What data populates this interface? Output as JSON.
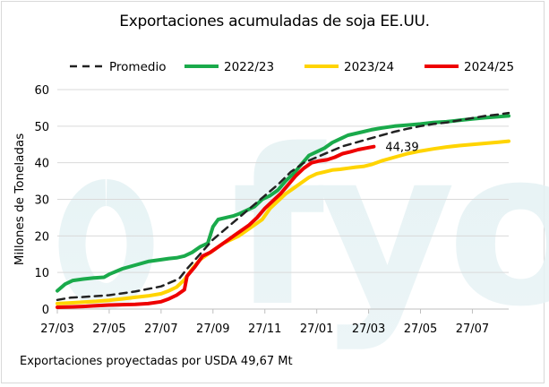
{
  "title": "Exportaciones acumuladas de soja EE.UU.",
  "footer": "Exportaciones proyectadas por USDA 49,67 Mt",
  "chart_data": {
    "type": "line",
    "title": "Exportaciones acumuladas de soja EE.UU.",
    "xlabel": "",
    "ylabel": "Millones de Toneladas",
    "ylim": [
      0,
      60
    ],
    "yticks": [
      "0",
      "10",
      "20",
      "30",
      "40",
      "50",
      "60"
    ],
    "xlim": [
      0,
      17.4
    ],
    "xtick_labels": [
      "27/03",
      "27/05",
      "27/07",
      "27/09",
      "27/11",
      "27/01",
      "27/03",
      "27/05",
      "27/07"
    ],
    "xtick_positions": [
      0,
      2,
      4,
      6,
      8,
      10,
      12,
      14,
      16
    ],
    "grid": "horizontal",
    "annotation": "44,39",
    "series": [
      {
        "name": "Promedio",
        "color": "#222222",
        "dash": true,
        "x": [
          0,
          0.5,
          1,
          2,
          3,
          4,
          4.7,
          5,
          5.5,
          6,
          6.5,
          7,
          7.5,
          8,
          8.5,
          9,
          9.5,
          10,
          10.5,
          11,
          11.5,
          12,
          12.5,
          13,
          13.5,
          14,
          14.5,
          15,
          15.5,
          16,
          16.5,
          17,
          17.4
        ],
        "y": [
          2.5,
          3.1,
          3.3,
          3.8,
          4.8,
          6.2,
          8.3,
          11,
          15,
          19,
          22,
          25,
          28,
          31,
          34,
          37.5,
          40,
          41.5,
          43,
          44.5,
          45.5,
          46.5,
          47.5,
          48.5,
          49.3,
          50,
          50.6,
          51,
          51.6,
          52.2,
          52.8,
          53.2,
          53.6
        ]
      },
      {
        "name": "2022/23",
        "color": "#1aaa4b",
        "dash": false,
        "x": [
          0,
          0.3,
          0.6,
          1,
          1.4,
          1.8,
          2,
          2.5,
          3,
          3.5,
          4,
          4.3,
          4.6,
          4.9,
          5.2,
          5.5,
          5.8,
          6,
          6.2,
          6.5,
          6.8,
          7,
          7.3,
          7.6,
          7.9,
          8.2,
          8.5,
          8.8,
          9.1,
          9.4,
          9.7,
          10,
          10.3,
          10.6,
          10.9,
          11.2,
          11.5,
          11.8,
          12.1,
          12.5,
          13,
          13.5,
          14,
          14.5,
          15,
          15.5,
          16,
          16.5,
          17,
          17.4
        ],
        "y": [
          5,
          6.8,
          7.8,
          8.2,
          8.5,
          8.7,
          9.5,
          11,
          12,
          13,
          13.5,
          13.8,
          14,
          14.5,
          15.5,
          17,
          18,
          22.5,
          24.5,
          25,
          25.5,
          26,
          27,
          28,
          30,
          31,
          32.5,
          35,
          37,
          39.5,
          42,
          43,
          44,
          45.5,
          46.5,
          47.5,
          48,
          48.5,
          49,
          49.5,
          50,
          50.3,
          50.6,
          51,
          51.2,
          51.6,
          52,
          52.3,
          52.6,
          52.8
        ]
      },
      {
        "name": "2023/24",
        "color": "#ffd400",
        "dash": false,
        "x": [
          0,
          0.5,
          1,
          1.5,
          2,
          2.5,
          3,
          3.5,
          4,
          4.3,
          4.6,
          4.9,
          5.2,
          5.5,
          5.8,
          6.1,
          6.4,
          6.7,
          7,
          7.3,
          7.6,
          7.9,
          8.2,
          8.5,
          8.8,
          9.1,
          9.4,
          9.7,
          10,
          10.3,
          10.6,
          10.9,
          11.2,
          11.5,
          11.8,
          12.1,
          12.5,
          13,
          13.5,
          14,
          14.5,
          15,
          15.5,
          16,
          16.5,
          17,
          17.4
        ],
        "y": [
          1.5,
          1.7,
          1.9,
          2.1,
          2.4,
          2.8,
          3.2,
          3.6,
          4.2,
          5,
          6,
          8,
          11,
          13.5,
          15,
          16.5,
          18,
          19,
          20,
          21.5,
          23,
          24.5,
          27.5,
          29.5,
          31.5,
          33,
          34.5,
          36,
          37,
          37.5,
          38,
          38.2,
          38.5,
          38.8,
          39,
          39.5,
          40.5,
          41.5,
          42.5,
          43.2,
          43.8,
          44.3,
          44.7,
          45,
          45.3,
          45.6,
          45.9
        ]
      },
      {
        "name": "2024/25",
        "color": "#ee0000",
        "dash": false,
        "x": [
          0,
          0.5,
          1,
          1.5,
          2,
          2.5,
          3,
          3.5,
          4,
          4.3,
          4.6,
          4.9,
          5,
          5.3,
          5.6,
          5.9,
          6.2,
          6.5,
          6.8,
          7.1,
          7.4,
          7.7,
          8,
          8.3,
          8.6,
          8.9,
          9.2,
          9.5,
          9.8,
          10.1,
          10.4,
          10.7,
          11,
          11.3,
          11.6,
          11.9,
          12.2
        ],
        "y": [
          0.5,
          0.6,
          0.7,
          0.9,
          1.1,
          1.2,
          1.3,
          1.5,
          2,
          2.8,
          3.8,
          5.3,
          9,
          11.5,
          14.5,
          15.5,
          17,
          18.5,
          20,
          21.5,
          23,
          25,
          27.5,
          29.5,
          31.5,
          34,
          36.5,
          38.5,
          40,
          40.5,
          40.8,
          41.5,
          42.5,
          43,
          43.6,
          44,
          44.39
        ]
      }
    ]
  }
}
